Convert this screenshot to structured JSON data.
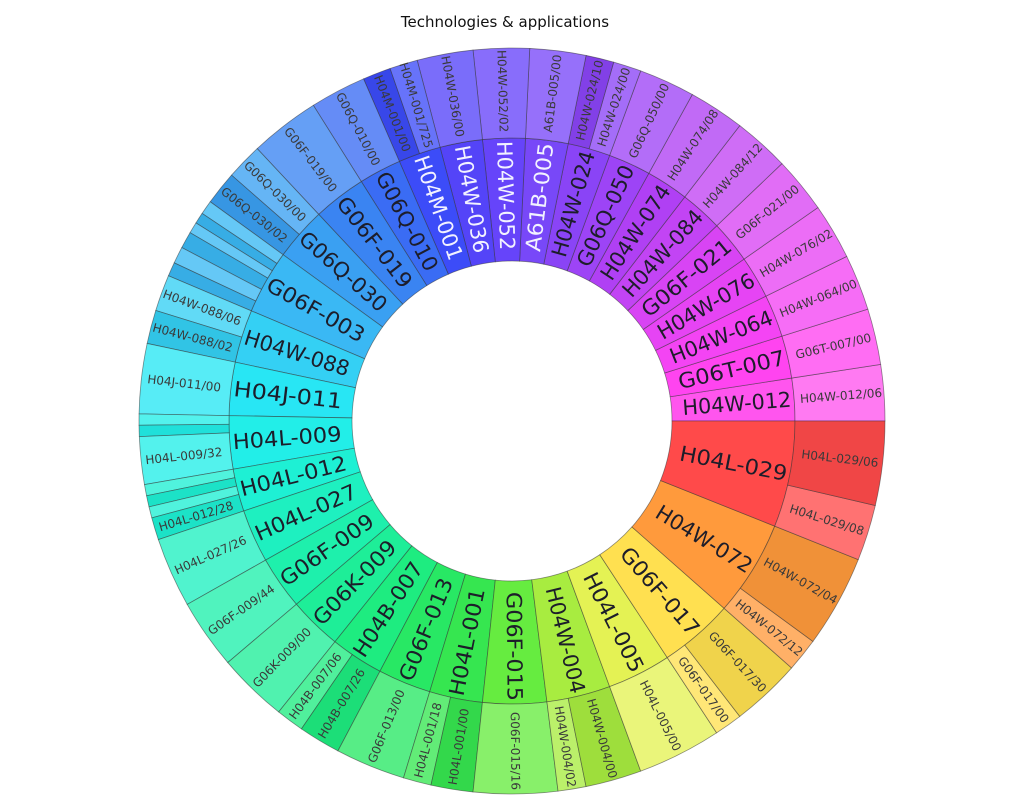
{
  "chart_data": {
    "type": "sunburst",
    "title": "Technologies & applications",
    "start_angle_deg": 0,
    "direction": "counterclockwise",
    "colors": {
      "H04W-012": "#ff55ee",
      "G06T-007": "#ff44f0",
      "H04W-064": "#f444f4",
      "H04W-076": "#e644f4",
      "G06F-021": "#d844f4",
      "H04W-084": "#c244f4",
      "H04W-074": "#b040f4",
      "G06Q-050": "#9d44f6",
      "H04W-024": "#8a44f6",
      "A61B-005": "#7848f8",
      "H04W-052": "#6644fa",
      "H04W-036": "#5444f8",
      "H04M-001": "#3c4cf8",
      "G06Q-010": "#3a6cf4",
      "G06F-019": "#3a84f2",
      "G06Q-030": "#3aa0f2",
      "G06F-003": "#3ab8f4",
      "H04W-088": "#34d0f4",
      "H04J-011": "#28e6f4",
      "H04L-009": "#22eee8",
      "H04L-012": "#1ef0d4",
      "H04L-027": "#1ef0c0",
      "G06F-009": "#1ef0ac",
      "G06K-009": "#1eee98",
      "H04B-007": "#1eec80",
      "G06F-013": "#28e864",
      "H04L-001": "#36e650",
      "G06F-015": "#66ec40",
      "H04W-004": "#a8ec40",
      "H04L-005": "#e4f254",
      "G06F-017": "#ffe050",
      "H04W-072": "#ff9a3c",
      "H04L-029": "#ff4a4a"
    },
    "groups": [
      {
        "name": "H04W-012",
        "value": 2,
        "children": [
          {
            "name": "H04W-012/06",
            "value": 2
          }
        ]
      },
      {
        "name": "G06T-007",
        "value": 2,
        "children": [
          {
            "name": "G06T-007/00",
            "value": 2
          }
        ]
      },
      {
        "name": "H04W-064",
        "value": 2,
        "children": [
          {
            "name": "H04W-064/00",
            "value": 2
          }
        ]
      },
      {
        "name": "H04W-076",
        "value": 2,
        "children": [
          {
            "name": "H04W-076/02",
            "value": 2
          }
        ]
      },
      {
        "name": "G06F-021",
        "value": 2,
        "children": [
          {
            "name": "G06F-021/00",
            "value": 2
          }
        ]
      },
      {
        "name": "H04W-084",
        "value": 2,
        "children": [
          {
            "name": "H04W-084/12",
            "value": 2
          }
        ]
      },
      {
        "name": "H04W-074",
        "value": 2,
        "children": [
          {
            "name": "H04W-074/08",
            "value": 2
          }
        ]
      },
      {
        "name": "G06Q-050",
        "value": 2,
        "children": [
          {
            "name": "G06Q-050/00",
            "value": 2
          }
        ]
      },
      {
        "name": "H04W-024",
        "value": 2,
        "children": [
          {
            "name": "H04W-024/00",
            "value": 1
          },
          {
            "name": "H04W-024/10",
            "value": 1
          }
        ]
      },
      {
        "name": "A61B-005",
        "value": 2,
        "children": [
          {
            "name": "A61B-005/00",
            "value": 2
          }
        ]
      },
      {
        "name": "H04W-052",
        "value": 2,
        "children": [
          {
            "name": "H04W-052/02",
            "value": 2
          }
        ]
      },
      {
        "name": "H04W-036",
        "value": 2,
        "children": [
          {
            "name": "H04W-036/00",
            "value": 2
          }
        ]
      },
      {
        "name": "H04M-001",
        "value": 2,
        "children": [
          {
            "name": "H04M-001/725",
            "value": 1
          },
          {
            "name": "H04M-001/00",
            "value": 1
          }
        ]
      },
      {
        "name": "G06Q-010",
        "value": 2,
        "children": [
          {
            "name": "G06Q-010/00",
            "value": 2
          }
        ]
      },
      {
        "name": "G06F-019",
        "value": 2.5,
        "children": [
          {
            "name": "G06F-019/00",
            "value": 2.5
          }
        ]
      },
      {
        "name": "G06Q-030",
        "value": 2.5,
        "children": [
          {
            "name": "G06Q-030/00",
            "value": 1.3
          },
          {
            "name": "G06Q-030/02",
            "value": 1.2
          }
        ]
      },
      {
        "name": "G06F-003",
        "value": 3,
        "children": [
          {
            "name": "",
            "value": 0.5
          },
          {
            "name": "",
            "value": 0.4
          },
          {
            "name": "",
            "value": 0.4
          },
          {
            "name": "",
            "value": 0.6
          },
          {
            "name": "",
            "value": 0.6
          },
          {
            "name": "",
            "value": 0.5
          }
        ]
      },
      {
        "name": "H04W-088",
        "value": 2.5,
        "children": [
          {
            "name": "H04W-088/06",
            "value": 1.3
          },
          {
            "name": "H04W-088/02",
            "value": 1.2
          }
        ]
      },
      {
        "name": "H04J-011",
        "value": 2.5,
        "children": [
          {
            "name": "H04J-011/00",
            "value": 2.5
          }
        ]
      },
      {
        "name": "H04L-009",
        "value": 2.5,
        "children": [
          {
            "name": "",
            "value": 0.4
          },
          {
            "name": "",
            "value": 0.4
          },
          {
            "name": "H04L-009/32",
            "value": 1.7
          }
        ]
      },
      {
        "name": "H04L-012",
        "value": 2,
        "children": [
          {
            "name": "",
            "value": 0.4
          },
          {
            "name": "",
            "value": 0.4
          },
          {
            "name": "",
            "value": 0.4
          },
          {
            "name": "H04L-012/28",
            "value": 0.8
          }
        ]
      },
      {
        "name": "H04L-027",
        "value": 2.5,
        "children": [
          {
            "name": "H04L-027/26",
            "value": 2.5
          }
        ]
      },
      {
        "name": "G06F-009",
        "value": 2.5,
        "children": [
          {
            "name": "G06F-009/44",
            "value": 2.5
          }
        ]
      },
      {
        "name": "G06K-009",
        "value": 2.5,
        "children": [
          {
            "name": "G06K-009/00",
            "value": 2.5
          }
        ]
      },
      {
        "name": "H04B-007",
        "value": 2.5,
        "children": [
          {
            "name": "H04B-007/06",
            "value": 1
          },
          {
            "name": "H04B-007/26",
            "value": 1.5
          }
        ]
      },
      {
        "name": "G06F-013",
        "value": 2.5,
        "children": [
          {
            "name": "G06F-013/00",
            "value": 2.5
          }
        ]
      },
      {
        "name": "H04L-001",
        "value": 2.5,
        "children": [
          {
            "name": "H04L-001/18",
            "value": 1
          },
          {
            "name": "H04L-001/00",
            "value": 1.5
          }
        ]
      },
      {
        "name": "G06F-015",
        "value": 3,
        "children": [
          {
            "name": "G06F-015/16",
            "value": 3
          }
        ]
      },
      {
        "name": "H04W-004",
        "value": 3,
        "children": [
          {
            "name": "H04W-004/02",
            "value": 1
          },
          {
            "name": "H04W-004/00",
            "value": 2
          }
        ]
      },
      {
        "name": "H04L-005",
        "value": 3,
        "children": [
          {
            "name": "H04L-005/00",
            "value": 3
          }
        ]
      },
      {
        "name": "G06F-017",
        "value": 3.5,
        "children": [
          {
            "name": "G06F-017/00",
            "value": 1
          },
          {
            "name": "G06F-017/30",
            "value": 2.5
          }
        ]
      },
      {
        "name": "H04W-072",
        "value": 4.5,
        "children": [
          {
            "name": "H04W-072/12",
            "value": 1.2
          },
          {
            "name": "H04W-072/04",
            "value": 3.3
          }
        ]
      },
      {
        "name": "H04L-029",
        "value": 5,
        "children": [
          {
            "name": "H04L-029/08",
            "value": 2
          },
          {
            "name": "H04L-029/06",
            "value": 3
          }
        ]
      }
    ]
  }
}
